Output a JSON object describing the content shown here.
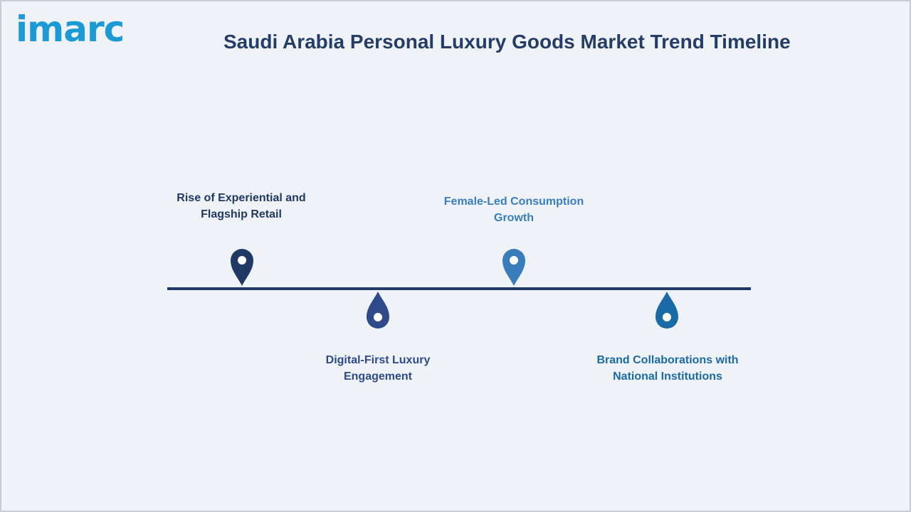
{
  "brand": {
    "logo_text": "imarc"
  },
  "header": {
    "title": "Saudi Arabia Personal Luxury Goods Market Trend Timeline"
  },
  "timeline": {
    "items": [
      {
        "lines": [
          "Rise of Experiential and",
          "Flagship Retail"
        ],
        "color": "#1f3864",
        "position": "above",
        "icon": "map-pin-icon"
      },
      {
        "lines": [
          "Digital-First Luxury",
          "Engagement"
        ],
        "color": "#2e4a8b",
        "position": "below",
        "icon": "droplet-icon"
      },
      {
        "lines": [
          "Female-Led Consumption",
          "Growth"
        ],
        "color": "#3a7dbd",
        "position": "above",
        "icon": "map-pin-icon"
      },
      {
        "lines": [
          "Brand Collaborations with",
          "National Institutions"
        ],
        "color": "#1a6aa8",
        "position": "below",
        "icon": "droplet-icon"
      }
    ],
    "line_color": "#1f3864"
  }
}
